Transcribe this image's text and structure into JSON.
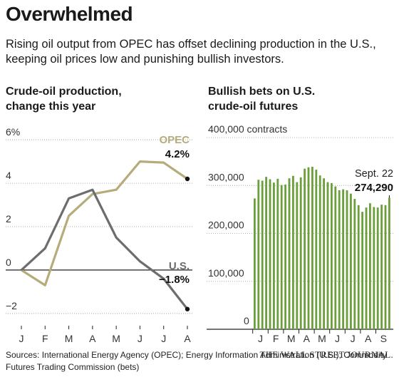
{
  "headline": "Overwhelmed",
  "dek": "Rising oil output from OPEC has offset declining production in the U.S., keeping oil prices low and punishing bullish investors.",
  "colors": {
    "opec": "#b5ac7a",
    "us": "#6d6d6d",
    "bars": "#6a9f3c",
    "axis": "#222222",
    "grid": "#999999"
  },
  "chart_data": [
    {
      "type": "line",
      "title": "Crude-oil production, change this year",
      "ytick_labels": [
        "6%",
        "4",
        "2",
        "0",
        "−2"
      ],
      "yticks": [
        6,
        4,
        2,
        0,
        -2
      ],
      "ylim": [
        -2.4,
        6.4
      ],
      "categories": [
        "J",
        "F",
        "M",
        "A",
        "M",
        "J",
        "J",
        "A"
      ],
      "series": [
        {
          "name": "OPEC",
          "end_label": "4.2%",
          "values": [
            0,
            -0.7,
            2.5,
            3.5,
            3.7,
            5.0,
            4.95,
            4.2
          ]
        },
        {
          "name": "U.S.",
          "end_label": "−1.8%",
          "values": [
            0,
            1.0,
            3.3,
            3.7,
            1.5,
            0.4,
            -0.4,
            -1.8
          ]
        }
      ]
    },
    {
      "type": "bar",
      "title": "Bullish bets on U.S. crude-oil futures",
      "ytick_labels": [
        "400,000 contracts",
        "300,000",
        "200,000",
        "100,000",
        "0"
      ],
      "yticks": [
        400000,
        300000,
        200000,
        100000,
        0
      ],
      "ylim": [
        0,
        400000
      ],
      "month_labels": [
        "J",
        "F",
        "M",
        "A",
        "M",
        "J",
        "J",
        "A",
        "S"
      ],
      "annotation": {
        "date": "Sept. 22",
        "value": "274,290"
      },
      "values": [
        273000,
        312000,
        310000,
        318000,
        313000,
        306000,
        314000,
        301000,
        302000,
        315000,
        320000,
        307000,
        317000,
        335000,
        338000,
        339000,
        333000,
        321000,
        315000,
        307000,
        305000,
        298000,
        290000,
        292000,
        290000,
        283000,
        272000,
        259000,
        245000,
        254000,
        263000,
        255000,
        254000,
        260000,
        259000,
        274290
      ]
    }
  ],
  "sources": "Sources: International Energy Agency (OPEC); Energy Information Administration (U.S.); Commodity Futures Trading Commission (bets)",
  "credit": "THE WALL STREET JOURNAL."
}
